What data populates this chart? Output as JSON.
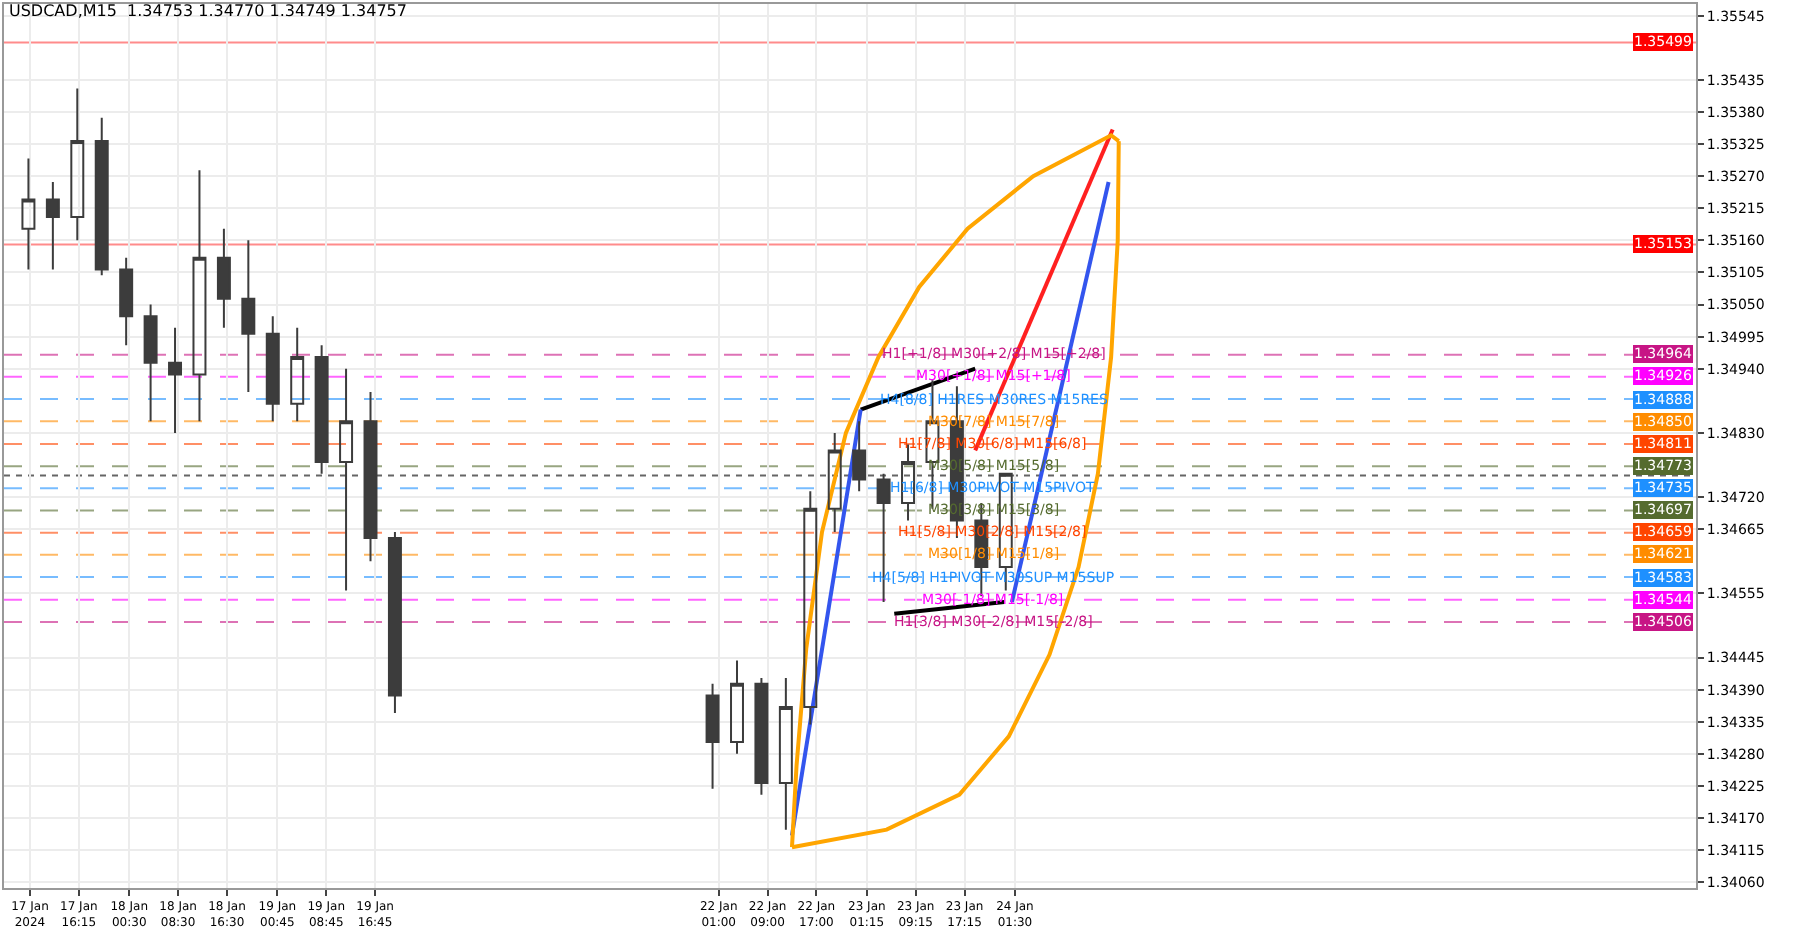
{
  "chart_data": {
    "type": "candlestick",
    "title": "USDCAD,M15  1.34753 1.34770 1.34749 1.34757",
    "color": "#3c3c3c",
    "x": [
      "2024-01-17T08:00",
      "2024-01-17T12:00",
      "2024-01-17T16:00",
      "2024-01-17T20:00",
      "2024-01-18T00:00",
      "2024-01-18T04:00",
      "2024-01-18T08:00",
      "2024-01-18T12:00",
      "2024-01-18T16:00",
      "2024-01-18T20:00",
      "2024-01-19T00:00",
      "2024-01-19T04:00",
      "2024-01-19T08:00",
      "2024-01-19T12:00",
      "2024-01-19T16:00",
      "2024-01-19T20:00",
      "2024-01-22T00:00",
      "2024-01-22T04:00",
      "2024-01-22T08:00",
      "2024-01-22T12:00",
      "2024-01-22T16:00",
      "2024-01-22T20:00",
      "2024-01-23T00:00",
      "2024-01-23T04:00",
      "2024-01-23T08:00",
      "2024-01-23T12:00",
      "2024-01-23T16:00",
      "2024-01-23T20:00",
      "2024-01-24T00:00"
    ],
    "ohlc": [
      [
        1.3518,
        1.353,
        1.3511,
        1.3523
      ],
      [
        1.3523,
        1.3526,
        1.3511,
        1.352
      ],
      [
        1.352,
        1.3542,
        1.3516,
        1.3533
      ],
      [
        1.3533,
        1.3537,
        1.351,
        1.3511
      ],
      [
        1.3511,
        1.3513,
        1.3498,
        1.3503
      ],
      [
        1.3503,
        1.3505,
        1.3485,
        1.3495
      ],
      [
        1.3495,
        1.3501,
        1.3483,
        1.3493
      ],
      [
        1.3493,
        1.3528,
        1.3485,
        1.3513
      ],
      [
        1.3513,
        1.3518,
        1.3501,
        1.3506
      ],
      [
        1.3506,
        1.3516,
        1.349,
        1.35
      ],
      [
        1.35,
        1.3503,
        1.3485,
        1.3488
      ],
      [
        1.3488,
        1.3501,
        1.3485,
        1.3496
      ],
      [
        1.3496,
        1.3498,
        1.3476,
        1.3478
      ],
      [
        1.3478,
        1.3494,
        1.3456,
        1.3485
      ],
      [
        1.3485,
        1.349,
        1.3461,
        1.3465
      ],
      [
        1.3465,
        1.3466,
        1.3435,
        1.3438
      ],
      [
        1.3438,
        1.344,
        1.3422,
        1.343
      ],
      [
        1.343,
        1.3444,
        1.3428,
        1.344
      ],
      [
        1.344,
        1.3441,
        1.3421,
        1.3423
      ],
      [
        1.3423,
        1.3441,
        1.3415,
        1.3436
      ],
      [
        1.3436,
        1.3473,
        1.3433,
        1.347
      ],
      [
        1.347,
        1.3483,
        1.3466,
        1.348
      ],
      [
        1.348,
        1.3485,
        1.3473,
        1.3475
      ],
      [
        1.3475,
        1.3476,
        1.3454,
        1.3471
      ],
      [
        1.3471,
        1.3481,
        1.3468,
        1.3478
      ],
      [
        1.3478,
        1.3492,
        1.347,
        1.3485
      ],
      [
        1.3485,
        1.3491,
        1.3465,
        1.3468
      ],
      [
        1.3468,
        1.3471,
        1.3455,
        1.346
      ],
      [
        1.346,
        1.3476,
        1.3456,
        1.3476
      ]
    ],
    "series": [
      {
        "type": "line",
        "color": "#000000",
        "x": [
          "2024-01-23T00:15",
          "2024-01-23T19:00"
        ],
        "values": [
          1.3487,
          1.3494
        ]
      },
      {
        "type": "line",
        "color": "#000000",
        "x": [
          "2024-01-23T05:45",
          "2024-01-23T23:45"
        ],
        "values": [
          1.3452,
          1.3454
        ]
      },
      {
        "type": "line",
        "color": "#3355ee",
        "x": [
          "2024-01-22T13:00",
          "2024-01-23T00:15"
        ],
        "values": [
          1.3414,
          1.3487
        ]
      },
      {
        "type": "line",
        "color": "#3355ee",
        "x": [
          "2024-01-24T01:00",
          "2024-01-24T16:50"
        ],
        "values": [
          1.3454,
          1.3526
        ]
      },
      {
        "type": "line",
        "color": "#ff2020",
        "x": [
          "2024-01-23T19:00",
          "2024-01-24T17:30"
        ],
        "values": [
          1.348,
          1.3535
        ]
      },
      {
        "type": "line",
        "color": "#ffa500",
        "x": [
          "2024-01-22T13:00",
          "2024-01-22T13:45",
          "2024-01-22T15:20",
          "2024-01-22T17:55",
          "2024-01-22T21:50",
          "2024-01-23T03:10",
          "2024-01-23T09:50",
          "2024-01-23T17:45",
          "2024-01-24T04:30",
          "2024-01-24T17:15",
          "2024-01-24T18:30"
        ],
        "values": [
          1.3412,
          1.3426,
          1.3446,
          1.3466,
          1.3483,
          1.3496,
          1.3508,
          1.3518,
          1.3527,
          1.3534,
          1.3533
        ]
      },
      {
        "type": "line",
        "color": "#ffa500",
        "x": [
          "2024-01-22T13:00",
          "2024-01-23T04:30",
          "2024-01-23T16:25",
          "2024-01-24T00:30",
          "2024-01-24T07:10",
          "2024-01-24T11:55",
          "2024-01-24T15:05",
          "2024-01-24T17:15",
          "2024-01-24T18:20",
          "2024-01-24T18:30"
        ],
        "values": [
          1.3412,
          1.3415,
          1.3421,
          1.3431,
          1.3445,
          1.346,
          1.3476,
          1.3496,
          1.3516,
          1.3533
        ]
      }
    ],
    "xlim": [
      "2024-01-17T04:00",
      "2024-01-28T17:00"
    ],
    "xticks": [
      {
        "value": "2024-01-17T08:15",
        "label": "17 Jan 2024"
      },
      {
        "value": "2024-01-17T16:15",
        "label": "17 Jan 16:15"
      },
      {
        "value": "2024-01-18T00:30",
        "label": "18 Jan 00:30"
      },
      {
        "value": "2024-01-18T08:30",
        "label": "18 Jan 08:30"
      },
      {
        "value": "2024-01-18T16:30",
        "label": "18 Jan 16:30"
      },
      {
        "value": "2024-01-19T00:45",
        "label": "19 Jan 00:45"
      },
      {
        "value": "2024-01-19T08:45",
        "label": "19 Jan 08:45"
      },
      {
        "value": "2024-01-19T16:45",
        "label": "19 Jan 16:45"
      },
      {
        "value": "2024-01-22T01:00",
        "label": "22 Jan 01:00"
      },
      {
        "value": "2024-01-22T09:00",
        "label": "22 Jan 09:00"
      },
      {
        "value": "2024-01-22T17:00",
        "label": "22 Jan 17:00"
      },
      {
        "value": "2024-01-23T01:15",
        "label": "23 Jan 01:15"
      },
      {
        "value": "2024-01-23T09:15",
        "label": "23 Jan 09:15"
      },
      {
        "value": "2024-01-23T17:15",
        "label": "23 Jan 17:15"
      },
      {
        "value": "2024-01-24T01:30",
        "label": "24 Jan 01:30"
      }
    ],
    "ylim": [
      1.3405,
      1.35565
    ],
    "yticks": [
      1.35545,
      1.35435,
      {
        "value": 1.3538,
        "label": "1.35380"
      },
      1.35325,
      {
        "value": 1.3527,
        "label": "1.35270"
      },
      1.35215,
      {
        "value": 1.3516,
        "label": "1.35160"
      },
      1.35105,
      {
        "value": 1.3505,
        "label": "1.35050"
      },
      1.34995,
      {
        "value": 1.3494,
        "label": "1.34940"
      },
      {
        "value": 1.3483,
        "label": "1.34830"
      },
      {
        "value": 1.3472,
        "label": "1.34720"
      },
      1.34665,
      1.34555,
      1.34445,
      {
        "value": 1.3439,
        "label": "1.34390"
      },
      1.34335,
      {
        "value": 1.3428,
        "label": "1.34280"
      },
      1.34225,
      {
        "value": 1.3417,
        "label": "1.34170"
      },
      1.34115,
      {
        "value": 1.3406,
        "label": "1.34060"
      }
    ],
    "ref_lines": [
      {
        "axis": "y",
        "value": 1.35499,
        "label": "1.35499",
        "color": "#ff0000",
        "line_style": "solid"
      },
      {
        "axis": "y",
        "value": 1.35153,
        "label": "1.35153",
        "color": "#ff0000",
        "line_style": "solid"
      },
      {
        "axis": "y",
        "value": 1.34964,
        "label": "1.34964",
        "color": "#c71585",
        "line_style": "dashed"
      },
      {
        "axis": "y",
        "value": 1.34926,
        "label": "1.34926",
        "color": "#ff00ff",
        "line_style": "dashed"
      },
      {
        "axis": "y",
        "value": 1.34888,
        "label": "1.34888",
        "color": "#1e90ff",
        "line_style": "dashed"
      },
      {
        "axis": "y",
        "value": 1.3485,
        "label": "1.34850",
        "color": "#ff8c00",
        "line_style": "dashed"
      },
      {
        "axis": "y",
        "value": 1.34811,
        "label": "1.34811",
        "color": "#ff4500",
        "line_style": "dashed"
      },
      {
        "axis": "y",
        "value": 1.34773,
        "label": "1.34773",
        "color": "#556b2f",
        "line_style": "dashed"
      },
      {
        "axis": "y",
        "value": 1.34757,
        "label": null,
        "color": "#000000",
        "line_style": "dotted"
      },
      {
        "axis": "y",
        "value": 1.34735,
        "label": "1.34735",
        "color": "#1e90ff",
        "line_style": "dashed"
      },
      {
        "axis": "y",
        "value": 1.34697,
        "label": "1.34697",
        "color": "#556b2f",
        "line_style": "dashed"
      },
      {
        "axis": "y",
        "value": 1.34659,
        "label": "1.34659",
        "color": "#ff4500",
        "line_style": "dashed"
      },
      {
        "axis": "y",
        "value": 1.34621,
        "label": "1.34621",
        "color": "#ff8c00",
        "line_style": "dashed"
      },
      {
        "axis": "y",
        "value": 1.34583,
        "label": "1.34583",
        "color": "#1e90ff",
        "line_style": "dashed"
      },
      {
        "axis": "y",
        "value": 1.34544,
        "label": "1.34544",
        "color": "#ff00ff",
        "line_style": "dashed"
      },
      {
        "axis": "y",
        "value": 1.34506,
        "label": "1.34506",
        "color": "#c71585",
        "line_style": "dashed"
      }
    ],
    "annotations": [
      {
        "text": "H1[+1/8] M30[+2/8] M15[+2/8]",
        "x": "2024-01-23T22:00",
        "y": 1.34964
      },
      {
        "text": "M30[+1/8] M15[+1/8]",
        "x": "2024-01-23T22:00",
        "y": 1.34926
      },
      {
        "text": "H4[8/8] H1RES M30RES M15RES",
        "x": "2024-01-23T22:00",
        "y": 1.34888
      },
      {
        "text": "M30[7/8] M15[7/8]",
        "x": "2024-01-23T22:00",
        "y": 1.3485
      },
      {
        "text": "H1[7/8] M30[6/8] M15[6/8]",
        "x": "2024-01-23T22:00",
        "y": 1.34811
      },
      {
        "text": "M30[5/8] M15[5/8]",
        "x": "2024-01-23T22:00",
        "y": 1.34773
      },
      {
        "text": "H1[6/8] M30PIVOT M15PIVOT",
        "x": "2024-01-23T22:00",
        "y": 1.34735
      },
      {
        "text": "M30[3/8] M15[3/8]",
        "x": "2024-01-23T22:00",
        "y": 1.34697
      },
      {
        "text": "H1[5/8] M30[2/8] M15[2/8]",
        "x": "2024-01-23T22:00",
        "y": 1.34659
      },
      {
        "text": "M30[1/8] M15[1/8]",
        "x": "2024-01-23T22:00",
        "y": 1.34621
      },
      {
        "text": "H4[5/8] H1PIVOT M30SUP M15SUP",
        "x": "2024-01-23T22:00",
        "y": 1.34583
      },
      {
        "text": "M30[-1/8] M15[-1/8]",
        "x": "2024-01-23T22:00",
        "y": 1.34544
      },
      {
        "text": "H1[3/8] M30[-2/8] M15[-2/8]",
        "x": "2024-01-23T22:00",
        "y": 1.34506
      }
    ],
    "grid": true
  }
}
